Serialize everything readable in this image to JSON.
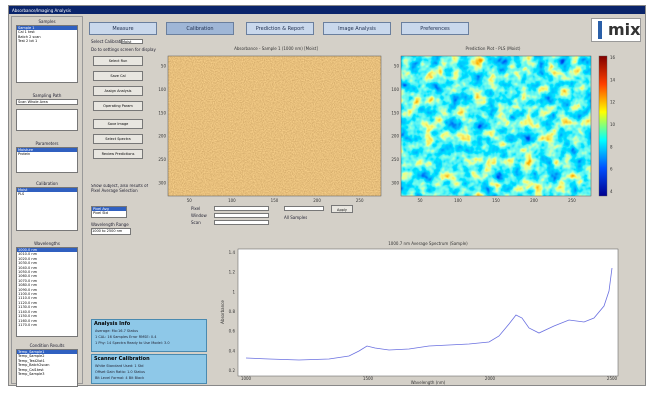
{
  "window": {
    "title": "Absorbance/Imaging Analysis"
  },
  "sidebar": {
    "samples": {
      "label": "Samples",
      "items": [
        "Sample 1",
        "Cal 1 test",
        "Batch 2 scan",
        "Test 2 lot 1"
      ]
    },
    "sampling_path": {
      "label": "Sampling Path",
      "value": "Scan Whole Area"
    },
    "parameters": {
      "label": "Parameters",
      "items": [
        "Moisture",
        "Protein"
      ]
    },
    "calibration": {
      "label": "Calibration",
      "items": [
        "Moist",
        "PLS"
      ]
    },
    "wavelengths": {
      "label": "Wavelengths",
      "items": [
        "1000.0 nm",
        "1010.0 nm",
        "1020.0 nm",
        "1030.0 nm",
        "1040.0 nm",
        "1050.0 nm",
        "1060.0 nm",
        "1070.0 nm",
        "1080.0 nm",
        "1090.0 nm",
        "1100.0 nm",
        "1110.0 nm",
        "1120.0 nm",
        "1130.0 nm",
        "1140.0 nm",
        "1150.0 nm",
        "1160.0 nm",
        "1170.0 nm"
      ]
    },
    "condition_results": {
      "label": "Condition Results",
      "items": [
        "Temp_Sample1",
        "Temp_Sample2",
        "Temp_Test2lot1",
        "Temp_Batch2scan",
        "Temp_Cal1test",
        "Temp_Sample3"
      ]
    }
  },
  "tabs": [
    "Measure",
    "Calibration",
    "Prediction & Report",
    "Image Analysis",
    "Preferences"
  ],
  "logo": "mix",
  "controls": {
    "select_label": "Select Calibration",
    "select_value": "Moist",
    "note": "Do to settings screen for display",
    "buttons_top": [
      "Select Run",
      "Save Cal",
      "Assign Analysis",
      "Operating Param"
    ],
    "buttons_bottom": [
      "Save Image",
      "Select Spectra",
      "Review Predictions"
    ],
    "display_label": "Show subject, also results of Pixel Average Selection",
    "display_items": [
      "Pixel Avg",
      "Pixel Std"
    ],
    "range_label": "Wavelength Range",
    "range_value": "1000 to 2500 nm"
  },
  "image_left": {
    "title": "Absorbance - Sample 1 (1000 nm) [Moist]",
    "yticks": [
      "50",
      "100",
      "150",
      "200",
      "250",
      "300"
    ],
    "xticks": [
      "50",
      "100",
      "150",
      "200",
      "250"
    ]
  },
  "image_right": {
    "title": "Prediction Plot - PLS (Moist)",
    "yticks": [
      "50",
      "100",
      "150",
      "200",
      "250",
      "300"
    ],
    "xticks": [
      "50",
      "100",
      "150",
      "200",
      "250"
    ],
    "colorbar": [
      "16",
      "14",
      "12",
      "10",
      "8",
      "6",
      "4"
    ]
  },
  "roi": {
    "rows": [
      "Pixel",
      "Window",
      "Scan"
    ],
    "button": "Apply",
    "check": "All Samples"
  },
  "spectrum": {
    "title": "1000.7 nm Average Spectrum (Sample)",
    "xlabel": "Wavelength (nm)",
    "ylabel": "Absorbance",
    "xticks": [
      "1000",
      "1500",
      "2000",
      "2500"
    ],
    "yticks": [
      "1.4",
      "1.2",
      "1",
      "0.8",
      "0.6",
      "0.4",
      "0.2"
    ]
  },
  "analysis_info": {
    "title": "Analysis Info",
    "lines": [
      "Average: Mo:16.7 Status",
      "1 CAL: 16 Samples Error RMSE: 0.4",
      "1 Phy: 14 Spectra Ready to Use Model: 3.0"
    ]
  },
  "scanner_calibration": {
    "title": "Scanner Calibration",
    "lines": [
      "White Standard Used: 1 Std",
      "Offset Gain Ratio: 1.0 Status",
      "Bit Level Formal: 4 Bit Black"
    ]
  }
}
